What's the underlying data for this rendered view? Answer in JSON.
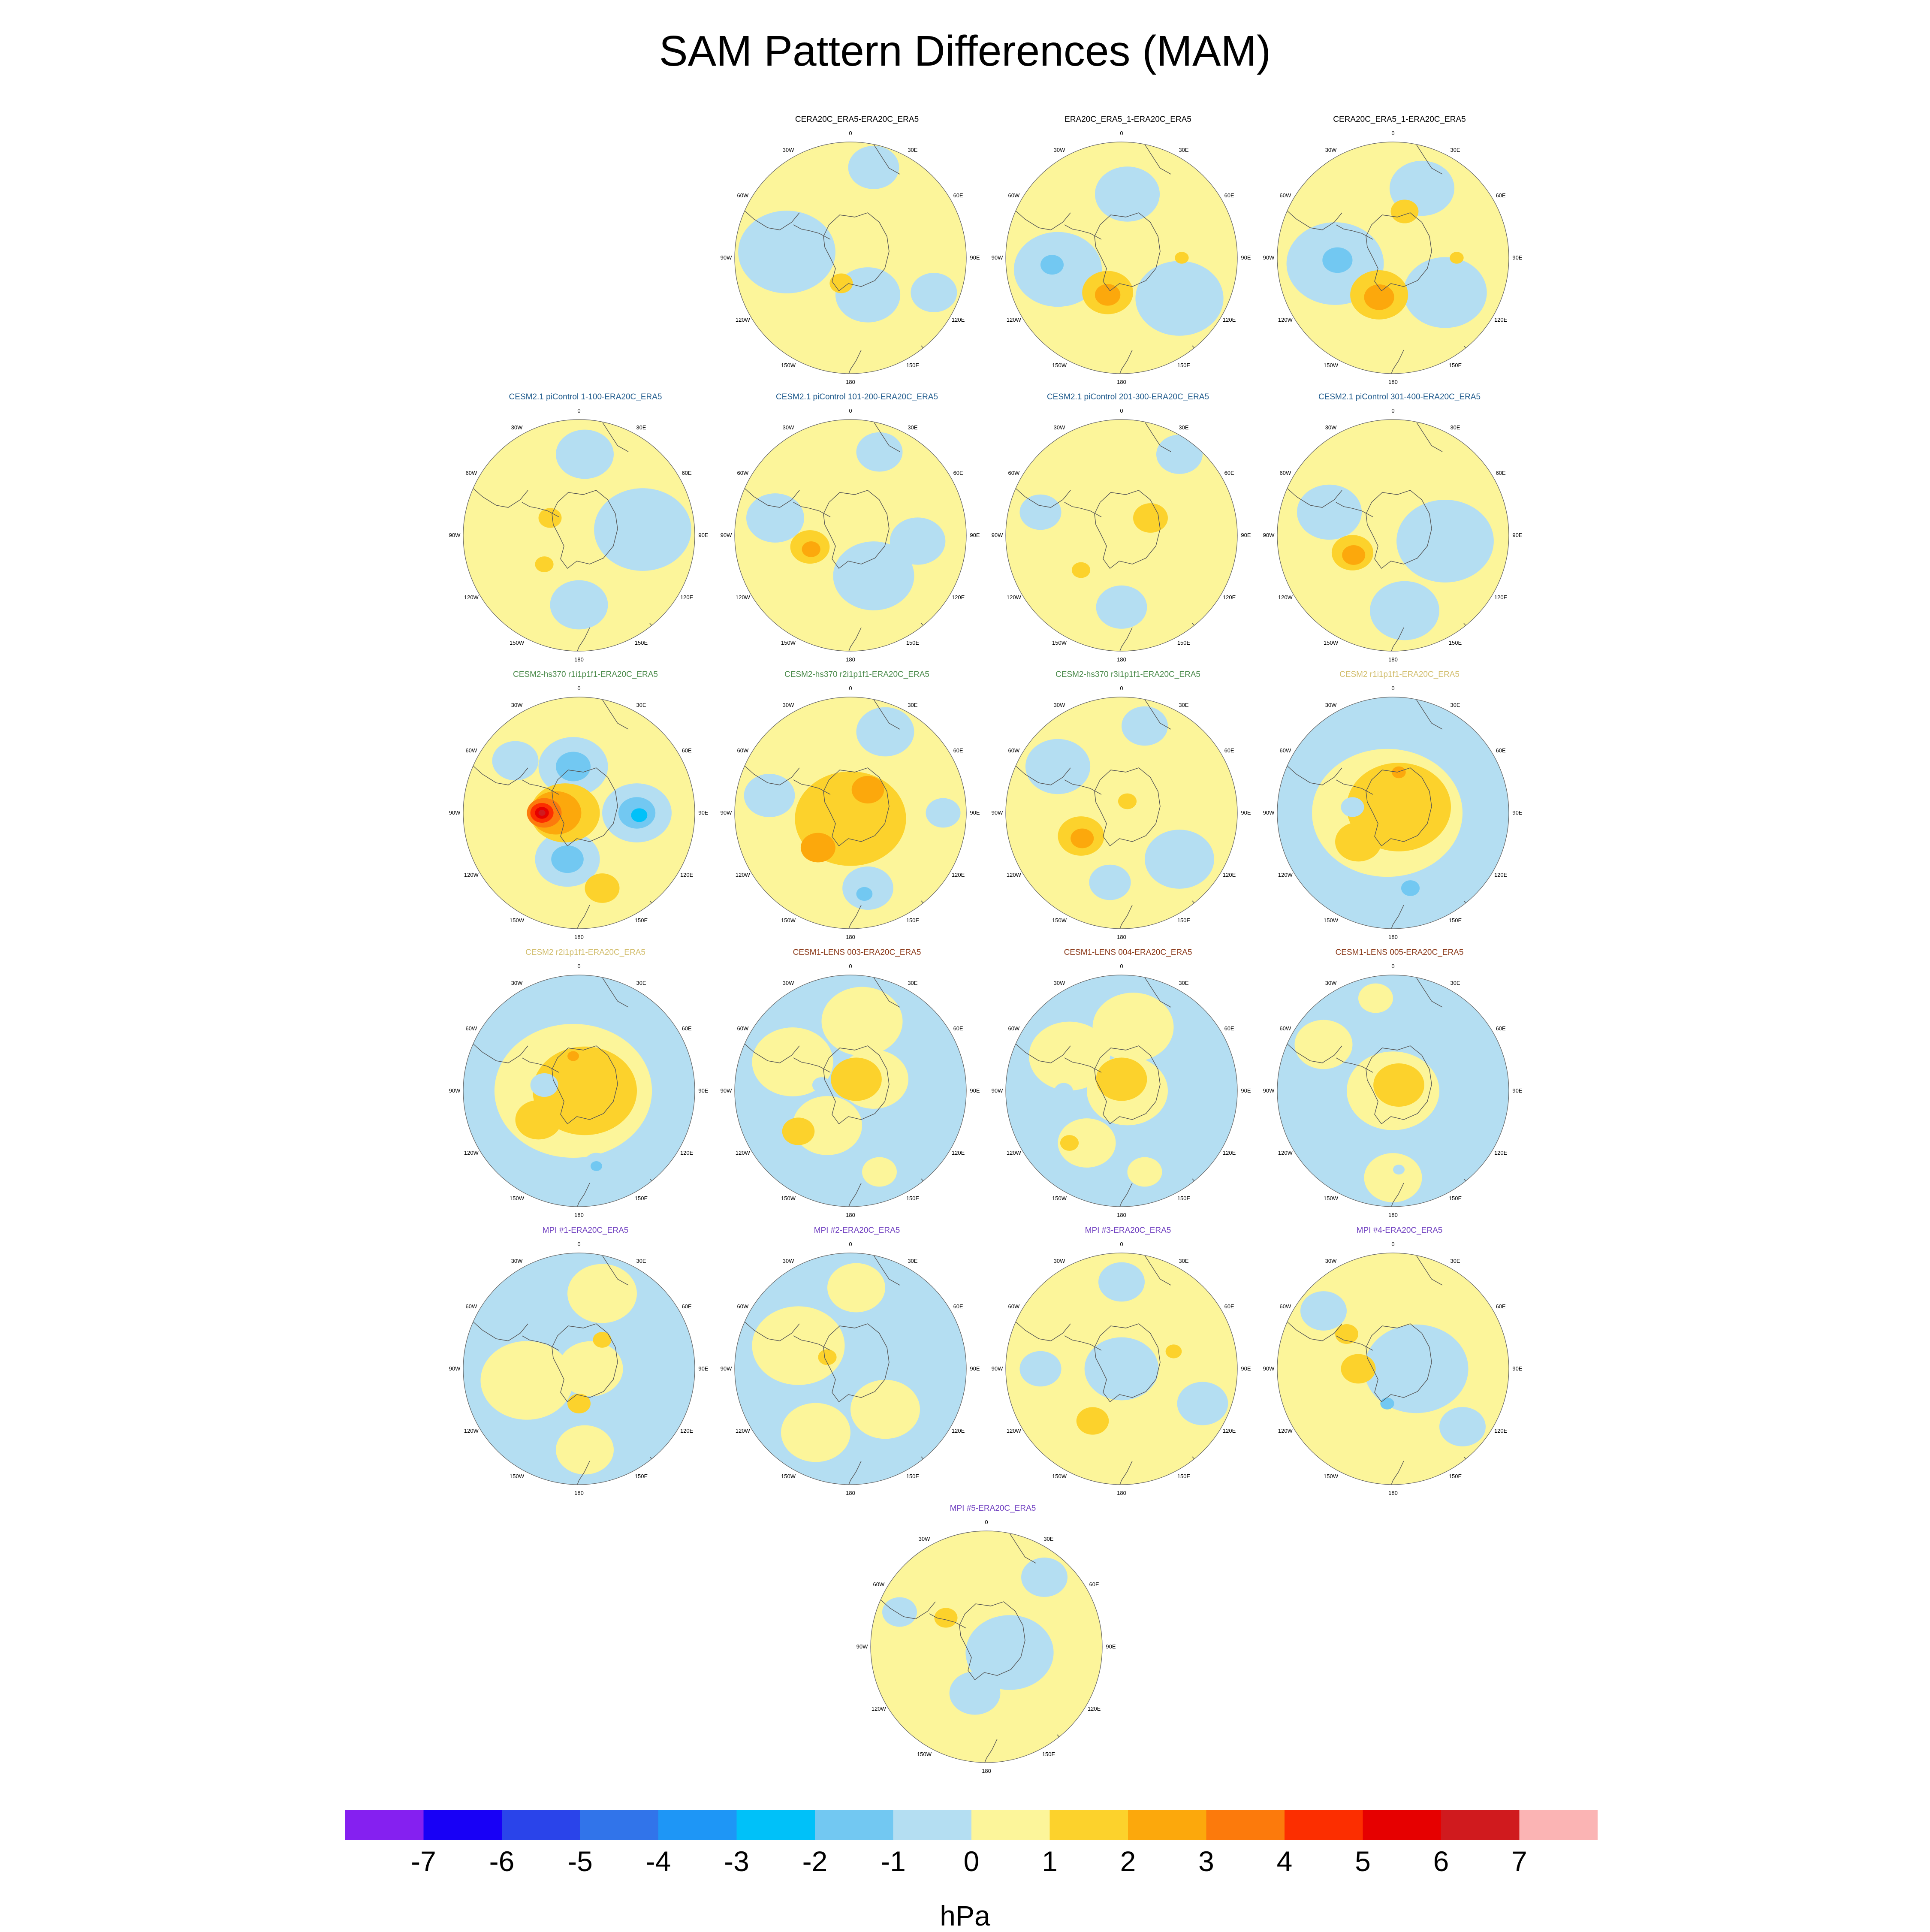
{
  "title": "SAM Pattern Differences (MAM)",
  "chart_data": {
    "type": "heatmap",
    "projection": "south-polar-stereographic",
    "lon_labels": [
      "0",
      "30E",
      "60E",
      "90E",
      "120E",
      "150E",
      "180",
      "150W",
      "120W",
      "90W",
      "60W",
      "30W"
    ],
    "colorbar": {
      "ticks": [
        "-7",
        "-6",
        "-5",
        "-4",
        "-3",
        "-2",
        "-1",
        "0",
        "1",
        "2",
        "3",
        "4",
        "5",
        "6",
        "7"
      ],
      "units": "hPa",
      "colors": [
        "#8520f0",
        "#1800f6",
        "#2a44ea",
        "#3174ea",
        "#1e96f6",
        "#00c1f9",
        "#72c8f2",
        "#b4def2",
        "#fcf59a",
        "#fcd22c",
        "#fca80c",
        "#fc7a0c",
        "#fc2e00",
        "#e60000",
        "#d01a1e",
        "#fbb4b4"
      ]
    },
    "panels": [
      {
        "title": "CERA20C_ERA5-ERA20C_ERA5",
        "title_color": "#000000",
        "base": "pos",
        "blobs": [
          {
            "v": -1,
            "x": -0.55,
            "y": -0.05,
            "r": 0.42
          },
          {
            "v": -1,
            "x": 0.15,
            "y": 0.32,
            "r": 0.28
          },
          {
            "v": -1,
            "x": 0.2,
            "y": -0.78,
            "r": 0.22
          },
          {
            "v": -1,
            "x": 0.72,
            "y": 0.3,
            "r": 0.2
          },
          {
            "v": 1,
            "x": -0.08,
            "y": 0.22,
            "r": 0.1
          }
        ]
      },
      {
        "title": "ERA20C_ERA5_1-ERA20C_ERA5",
        "title_color": "#000000",
        "base": "pos",
        "blobs": [
          {
            "v": -1,
            "x": -0.55,
            "y": 0.1,
            "r": 0.38
          },
          {
            "v": -1,
            "x": 0.5,
            "y": 0.35,
            "r": 0.38
          },
          {
            "v": -1,
            "x": 0.05,
            "y": -0.55,
            "r": 0.28
          },
          {
            "v": -2,
            "x": -0.6,
            "y": 0.06,
            "r": 0.1
          },
          {
            "v": 1,
            "x": -0.12,
            "y": 0.3,
            "r": 0.22
          },
          {
            "v": 2,
            "x": -0.12,
            "y": 0.32,
            "r": 0.11
          },
          {
            "v": 1,
            "x": 0.52,
            "y": 0.0,
            "r": 0.06
          }
        ]
      },
      {
        "title": "CERA20C_ERA5_1-ERA20C_ERA5",
        "title_color": "#000000",
        "base": "pos",
        "blobs": [
          {
            "v": -1,
            "x": -0.5,
            "y": 0.05,
            "r": 0.42
          },
          {
            "v": -1,
            "x": 0.45,
            "y": 0.3,
            "r": 0.36
          },
          {
            "v": -1,
            "x": 0.25,
            "y": -0.6,
            "r": 0.28
          },
          {
            "v": -2,
            "x": -0.48,
            "y": 0.02,
            "r": 0.13
          },
          {
            "v": 1,
            "x": -0.12,
            "y": 0.32,
            "r": 0.25
          },
          {
            "v": 2,
            "x": -0.12,
            "y": 0.34,
            "r": 0.13
          },
          {
            "v": 1,
            "x": 0.1,
            "y": -0.4,
            "r": 0.12
          },
          {
            "v": 1,
            "x": 0.55,
            "y": 0.0,
            "r": 0.06
          }
        ]
      },
      {
        "title": "CESM2.1 piControl 1-100-ERA20C_ERA5",
        "title_color": "#1e5a8c",
        "base": "pos",
        "blobs": [
          {
            "v": -1,
            "x": 0.55,
            "y": -0.05,
            "r": 0.42
          },
          {
            "v": -1,
            "x": 0.05,
            "y": -0.7,
            "r": 0.25
          },
          {
            "v": -1,
            "x": 0.0,
            "y": 0.6,
            "r": 0.25
          },
          {
            "v": 1,
            "x": -0.25,
            "y": -0.15,
            "r": 0.1
          },
          {
            "v": 1,
            "x": -0.3,
            "y": 0.25,
            "r": 0.08
          }
        ]
      },
      {
        "title": "CESM2.1 piControl 101-200-ERA20C_ERA5",
        "title_color": "#1e5a8c",
        "base": "pos",
        "blobs": [
          {
            "v": -1,
            "x": 0.2,
            "y": 0.35,
            "r": 0.35
          },
          {
            "v": -1,
            "x": 0.58,
            "y": 0.05,
            "r": 0.24
          },
          {
            "v": -1,
            "x": -0.65,
            "y": -0.15,
            "r": 0.25
          },
          {
            "v": -1,
            "x": 0.25,
            "y": -0.72,
            "r": 0.2
          },
          {
            "v": 1,
            "x": -0.35,
            "y": 0.1,
            "r": 0.17
          },
          {
            "v": 2,
            "x": -0.34,
            "y": 0.12,
            "r": 0.08
          }
        ]
      },
      {
        "title": "CESM2.1 piControl 201-300-ERA20C_ERA5",
        "title_color": "#1e5a8c",
        "base": "pos",
        "blobs": [
          {
            "v": -1,
            "x": 0.5,
            "y": -0.7,
            "r": 0.2
          },
          {
            "v": -1,
            "x": 0.0,
            "y": 0.62,
            "r": 0.22
          },
          {
            "v": -1,
            "x": -0.7,
            "y": -0.2,
            "r": 0.18
          },
          {
            "v": 1,
            "x": 0.25,
            "y": -0.15,
            "r": 0.15
          },
          {
            "v": 1,
            "x": -0.35,
            "y": 0.3,
            "r": 0.08
          }
        ]
      },
      {
        "title": "CESM2.1 piControl 301-400-ERA20C_ERA5",
        "title_color": "#1e5a8c",
        "base": "pos",
        "blobs": [
          {
            "v": -1,
            "x": 0.45,
            "y": 0.05,
            "r": 0.42
          },
          {
            "v": -1,
            "x": 0.1,
            "y": 0.65,
            "r": 0.3
          },
          {
            "v": -1,
            "x": -0.55,
            "y": -0.2,
            "r": 0.28
          },
          {
            "v": 1,
            "x": -0.35,
            "y": 0.15,
            "r": 0.18
          },
          {
            "v": 2,
            "x": -0.34,
            "y": 0.17,
            "r": 0.1
          }
        ]
      },
      {
        "title": "CESM2-hs370 r1i1p1f1-ERA20C_ERA5",
        "title_color": "#4a8a4a",
        "base": "pos",
        "blobs": [
          {
            "v": -1,
            "x": -0.05,
            "y": -0.4,
            "r": 0.3
          },
          {
            "v": -1,
            "x": 0.5,
            "y": 0.0,
            "r": 0.3
          },
          {
            "v": -1,
            "x": -0.1,
            "y": 0.4,
            "r": 0.28
          },
          {
            "v": -1,
            "x": -0.55,
            "y": -0.45,
            "r": 0.2
          },
          {
            "v": -2,
            "x": -0.05,
            "y": -0.4,
            "r": 0.15
          },
          {
            "v": -2,
            "x": 0.5,
            "y": 0.0,
            "r": 0.16
          },
          {
            "v": -2,
            "x": -0.1,
            "y": 0.4,
            "r": 0.14
          },
          {
            "v": -3,
            "x": 0.52,
            "y": 0.02,
            "r": 0.07
          },
          {
            "v": 1,
            "x": -0.12,
            "y": 0.0,
            "r": 0.3
          },
          {
            "v": 2,
            "x": -0.2,
            "y": 0.0,
            "r": 0.22
          },
          {
            "v": 3,
            "x": -0.3,
            "y": 0.0,
            "r": 0.15
          },
          {
            "v": 4,
            "x": -0.32,
            "y": 0.0,
            "r": 0.1
          },
          {
            "v": 5,
            "x": -0.32,
            "y": 0.0,
            "r": 0.06
          },
          {
            "v": 6,
            "x": -0.32,
            "y": 0.0,
            "r": 0.03
          },
          {
            "v": 1,
            "x": 0.2,
            "y": 0.65,
            "r": 0.15
          }
        ]
      },
      {
        "title": "CESM2-hs370 r2i1p1f1-ERA20C_ERA5",
        "title_color": "#4a8a4a",
        "base": "pos",
        "blobs": [
          {
            "v": -1,
            "x": 0.3,
            "y": -0.7,
            "r": 0.25
          },
          {
            "v": -1,
            "x": -0.7,
            "y": -0.15,
            "r": 0.22
          },
          {
            "v": -1,
            "x": 0.15,
            "y": 0.65,
            "r": 0.22
          },
          {
            "v": -1,
            "x": 0.8,
            "y": 0.0,
            "r": 0.15
          },
          {
            "v": 1,
            "x": 0.0,
            "y": 0.05,
            "r": 0.48
          },
          {
            "v": 2,
            "x": -0.28,
            "y": 0.3,
            "r": 0.15
          },
          {
            "v": 2,
            "x": 0.15,
            "y": -0.2,
            "r": 0.14
          },
          {
            "v": -2,
            "x": 0.12,
            "y": 0.7,
            "r": 0.07
          }
        ]
      },
      {
        "title": "CESM2-hs370 r3i1p1f1-ERA20C_ERA5",
        "title_color": "#4a8a4a",
        "base": "pos",
        "blobs": [
          {
            "v": -1,
            "x": -0.55,
            "y": -0.4,
            "r": 0.28
          },
          {
            "v": -1,
            "x": 0.5,
            "y": 0.4,
            "r": 0.3
          },
          {
            "v": -1,
            "x": 0.2,
            "y": -0.75,
            "r": 0.2
          },
          {
            "v": -1,
            "x": -0.1,
            "y": 0.6,
            "r": 0.18
          },
          {
            "v": 1,
            "x": -0.35,
            "y": 0.2,
            "r": 0.2
          },
          {
            "v": 2,
            "x": -0.34,
            "y": 0.22,
            "r": 0.1
          },
          {
            "v": 1,
            "x": 0.05,
            "y": -0.1,
            "r": 0.08
          }
        ]
      },
      {
        "title": "CESM2 r1i1p1f1-ERA20C_ERA5",
        "title_color": "#d2be6e",
        "base": "neg",
        "blobs": [
          {
            "v": 0,
            "x": -0.05,
            "y": 0.0,
            "r": 0.65
          },
          {
            "v": 1,
            "x": 0.05,
            "y": -0.05,
            "r": 0.45
          },
          {
            "v": 1,
            "x": -0.3,
            "y": 0.25,
            "r": 0.2
          },
          {
            "v": 2,
            "x": 0.05,
            "y": -0.35,
            "r": 0.06
          },
          {
            "v": -1,
            "x": -0.35,
            "y": -0.05,
            "r": 0.1
          },
          {
            "v": -2,
            "x": 0.15,
            "y": 0.65,
            "r": 0.08
          }
        ]
      },
      {
        "title": "CESM2 r2i1p1f1-ERA20C_ERA5",
        "title_color": "#d2be6e",
        "base": "neg",
        "blobs": [
          {
            "v": 0,
            "x": -0.05,
            "y": 0.0,
            "r": 0.68
          },
          {
            "v": 1,
            "x": 0.05,
            "y": 0.0,
            "r": 0.45
          },
          {
            "v": 1,
            "x": -0.35,
            "y": 0.25,
            "r": 0.2
          },
          {
            "v": 2,
            "x": -0.05,
            "y": -0.3,
            "r": 0.05
          },
          {
            "v": -1,
            "x": -0.3,
            "y": -0.05,
            "r": 0.12
          },
          {
            "v": -1,
            "x": 0.15,
            "y": 0.62,
            "r": 0.1
          },
          {
            "v": -2,
            "x": 0.15,
            "y": 0.65,
            "r": 0.05
          }
        ]
      },
      {
        "title": "CESM1-LENS 003-ERA20C_ERA5",
        "title_color": "#8b3a1a",
        "base": "neg",
        "blobs": [
          {
            "v": 0,
            "x": -0.5,
            "y": -0.25,
            "r": 0.35
          },
          {
            "v": 0,
            "x": 0.1,
            "y": -0.6,
            "r": 0.35
          },
          {
            "v": 0,
            "x": 0.2,
            "y": -0.1,
            "r": 0.3
          },
          {
            "v": 0,
            "x": -0.2,
            "y": 0.3,
            "r": 0.3
          },
          {
            "v": 0,
            "x": 0.25,
            "y": 0.7,
            "r": 0.15
          },
          {
            "v": 1,
            "x": 0.05,
            "y": -0.1,
            "r": 0.22
          },
          {
            "v": 1,
            "x": -0.45,
            "y": 0.35,
            "r": 0.14
          },
          {
            "v": -1,
            "x": -0.25,
            "y": -0.05,
            "r": 0.08
          }
        ]
      },
      {
        "title": "CESM1-LENS 004-ERA20C_ERA5",
        "title_color": "#8b3a1a",
        "base": "neg",
        "blobs": [
          {
            "v": 0,
            "x": -0.45,
            "y": -0.3,
            "r": 0.35
          },
          {
            "v": 0,
            "x": 0.1,
            "y": -0.55,
            "r": 0.35
          },
          {
            "v": 0,
            "x": 0.05,
            "y": 0.0,
            "r": 0.35
          },
          {
            "v": 0,
            "x": -0.3,
            "y": 0.45,
            "r": 0.25
          },
          {
            "v": 0,
            "x": 0.2,
            "y": 0.7,
            "r": 0.15
          },
          {
            "v": 1,
            "x": 0.0,
            "y": -0.1,
            "r": 0.22
          },
          {
            "v": 1,
            "x": -0.45,
            "y": 0.45,
            "r": 0.08
          },
          {
            "v": -1,
            "x": -0.5,
            "y": 0.0,
            "r": 0.08
          }
        ]
      },
      {
        "title": "CESM1-LENS 005-ERA20C_ERA5",
        "title_color": "#8b3a1a",
        "base": "neg",
        "blobs": [
          {
            "v": 0,
            "x": -0.6,
            "y": -0.4,
            "r": 0.25
          },
          {
            "v": 0,
            "x": 0.0,
            "y": 0.0,
            "r": 0.4
          },
          {
            "v": 0,
            "x": 0.0,
            "y": 0.75,
            "r": 0.25
          },
          {
            "v": 0,
            "x": -0.15,
            "y": -0.8,
            "r": 0.15
          },
          {
            "v": 1,
            "x": 0.05,
            "y": -0.05,
            "r": 0.22
          },
          {
            "v": -1,
            "x": -0.1,
            "y": 0.4,
            "r": 0.08
          },
          {
            "v": -1,
            "x": 0.05,
            "y": 0.68,
            "r": 0.05
          }
        ]
      },
      {
        "title": "MPI #1-ERA20C_ERA5",
        "title_color": "#7040c0",
        "base": "neg",
        "blobs": [
          {
            "v": 0,
            "x": -0.45,
            "y": 0.1,
            "r": 0.4
          },
          {
            "v": 0,
            "x": 0.2,
            "y": -0.65,
            "r": 0.3
          },
          {
            "v": 0,
            "x": 0.05,
            "y": 0.7,
            "r": 0.25
          },
          {
            "v": 0,
            "x": 0.1,
            "y": 0.0,
            "r": 0.28
          },
          {
            "v": 1,
            "x": 0.0,
            "y": 0.3,
            "r": 0.1
          },
          {
            "v": 1,
            "x": 0.2,
            "y": -0.25,
            "r": 0.08
          }
        ]
      },
      {
        "title": "MPI #2-ERA20C_ERA5",
        "title_color": "#7040c0",
        "base": "neg",
        "blobs": [
          {
            "v": 0,
            "x": -0.45,
            "y": -0.2,
            "r": 0.4
          },
          {
            "v": 0,
            "x": 0.05,
            "y": -0.7,
            "r": 0.25
          },
          {
            "v": 0,
            "x": 0.3,
            "y": 0.35,
            "r": 0.3
          },
          {
            "v": 0,
            "x": -0.3,
            "y": 0.55,
            "r": 0.3
          },
          {
            "v": 1,
            "x": -0.2,
            "y": -0.1,
            "r": 0.08
          }
        ]
      },
      {
        "title": "MPI #3-ERA20C_ERA5",
        "title_color": "#7040c0",
        "base": "pos",
        "blobs": [
          {
            "v": -1,
            "x": 0.0,
            "y": 0.0,
            "r": 0.32
          },
          {
            "v": -1,
            "x": 0.0,
            "y": -0.75,
            "r": 0.2
          },
          {
            "v": -1,
            "x": 0.7,
            "y": 0.3,
            "r": 0.22
          },
          {
            "v": -1,
            "x": -0.7,
            "y": 0.0,
            "r": 0.18
          },
          {
            "v": 1,
            "x": -0.25,
            "y": 0.45,
            "r": 0.14
          },
          {
            "v": 1,
            "x": 0.45,
            "y": -0.15,
            "r": 0.07
          }
        ]
      },
      {
        "title": "MPI #4-ERA20C_ERA5",
        "title_color": "#7040c0",
        "base": "pos",
        "blobs": [
          {
            "v": -1,
            "x": 0.2,
            "y": 0.0,
            "r": 0.45
          },
          {
            "v": -1,
            "x": -0.6,
            "y": -0.5,
            "r": 0.2
          },
          {
            "v": -1,
            "x": 0.6,
            "y": 0.5,
            "r": 0.2
          },
          {
            "v": 1,
            "x": -0.3,
            "y": 0.0,
            "r": 0.15
          },
          {
            "v": 1,
            "x": -0.4,
            "y": -0.3,
            "r": 0.1
          },
          {
            "v": -2,
            "x": -0.05,
            "y": 0.3,
            "r": 0.06
          }
        ]
      },
      {
        "title": "MPI #5-ERA20C_ERA5",
        "title_color": "#7040c0",
        "base": "pos",
        "blobs": [
          {
            "v": -1,
            "x": 0.2,
            "y": 0.05,
            "r": 0.38
          },
          {
            "v": -1,
            "x": -0.1,
            "y": 0.4,
            "r": 0.22
          },
          {
            "v": -1,
            "x": 0.5,
            "y": -0.6,
            "r": 0.2
          },
          {
            "v": -1,
            "x": -0.75,
            "y": -0.3,
            "r": 0.15
          },
          {
            "v": 1,
            "x": -0.35,
            "y": -0.25,
            "r": 0.1
          }
        ]
      }
    ]
  }
}
